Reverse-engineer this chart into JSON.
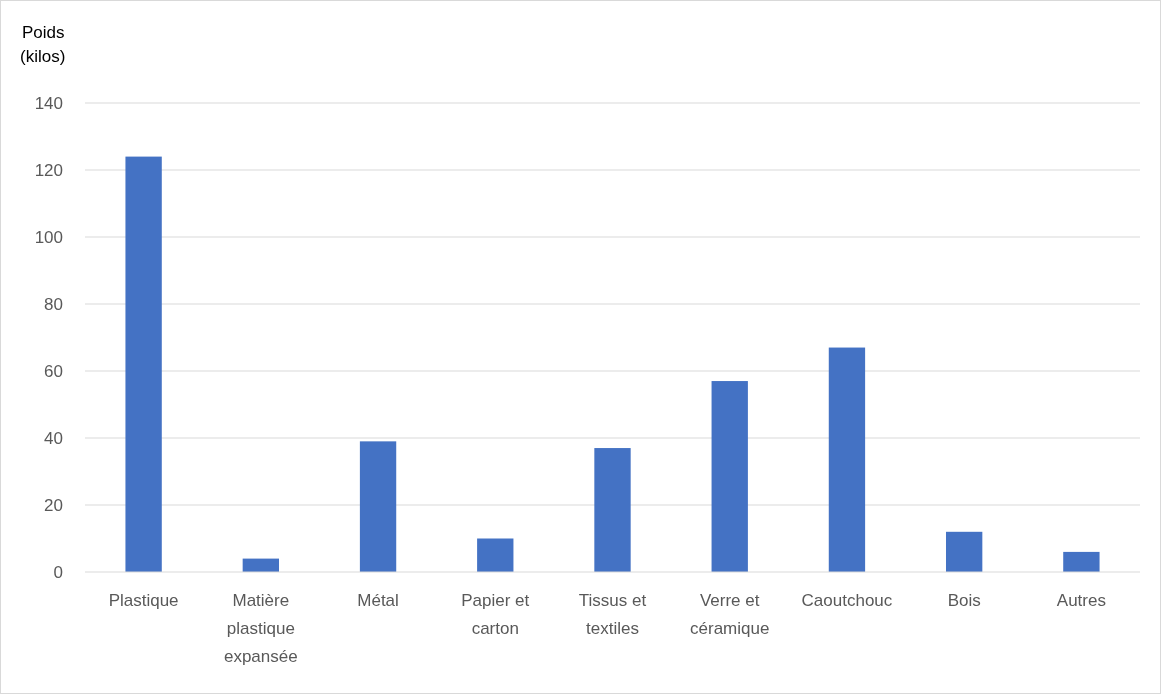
{
  "chart_data": {
    "type": "bar",
    "ylabel": "Poids (kilos)",
    "categories": [
      "Plastique",
      "Matière plastique expansée",
      "Métal",
      "Papier et carton",
      "Tissus et textiles",
      "Verre et céramique",
      "Caoutchouc",
      "Bois",
      "Autres"
    ],
    "values": [
      124,
      4,
      39,
      10,
      37,
      57,
      67,
      12,
      6
    ],
    "color": "#4472c4",
    "ylim": [
      0,
      140
    ],
    "yticks": [
      0,
      20,
      40,
      60,
      80,
      100,
      120,
      140
    ],
    "grid": "y"
  }
}
